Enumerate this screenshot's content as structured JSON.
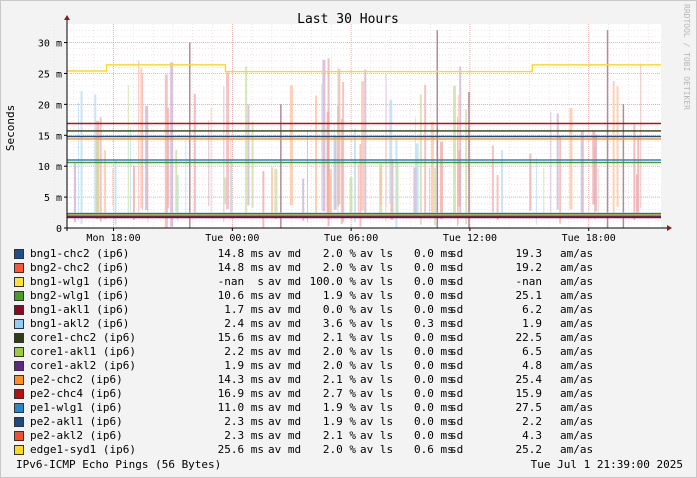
{
  "watermark": "RRDTOOL / TOBI OETIKER",
  "footer": {
    "left": "IPv6-ICMP Echo Pings (56 Bytes)",
    "right": "Tue Jul  1 21:39:00 2025"
  },
  "legend_units": {
    "avg": "av md",
    "loss": "av ls",
    "sd": "sd",
    "last": "am/as"
  },
  "legend": [
    {
      "name": "bng1-chc2 (ip6)",
      "avg": "14.8 ms",
      "loss": "2.0 %",
      "sd": "0.0 ms",
      "last": "19.3",
      "color": "#1f4e8c"
    },
    {
      "name": "bng2-chc2 (ip6)",
      "avg": "14.8 ms",
      "loss": "2.0 %",
      "sd": "0.0 ms",
      "last": "19.2",
      "color": "#ff5533"
    },
    {
      "name": "bng1-wlg1 (ip6)",
      "avg": "-nan  s",
      "loss": "100.0 %",
      "sd": "0.0 ms",
      "last": "-nan",
      "color": "#ffe03c"
    },
    {
      "name": "bng2-wlg1 (ip6)",
      "avg": "10.6 ms",
      "loss": "1.9 %",
      "sd": "0.0 ms",
      "last": "25.1",
      "color": "#4c9a2a"
    },
    {
      "name": "bng1-akl1 (ip6)",
      "avg": "1.7 ms",
      "loss": "0.0 %",
      "sd": "0.0 ms",
      "last": "6.2",
      "color": "#8c0b1e"
    },
    {
      "name": "bng1-akl2 (ip6)",
      "avg": "2.4 ms",
      "loss": "3.6 %",
      "sd": "0.3 ms",
      "last": "1.9",
      "color": "#8fcdf7"
    },
    {
      "name": "core1-chc2 (ip6)",
      "avg": "15.6 ms",
      "loss": "2.1 %",
      "sd": "0.0 ms",
      "last": "22.5",
      "color": "#2e3d12"
    },
    {
      "name": "core1-akl1 (ip6)",
      "avg": "2.2 ms",
      "loss": "2.0 %",
      "sd": "0.0 ms",
      "last": "6.5",
      "color": "#9ccc3c"
    },
    {
      "name": "core1-akl2 (ip6)",
      "avg": "1.9 ms",
      "loss": "2.0 %",
      "sd": "0.0 ms",
      "last": "4.8",
      "color": "#5a2a86"
    },
    {
      "name": "pe2-chc2 (ip6)",
      "avg": "14.3 ms",
      "loss": "2.1 %",
      "sd": "0.0 ms",
      "last": "25.4",
      "color": "#ff9020"
    },
    {
      "name": "pe2-chc4 (ip6)",
      "avg": "16.9 ms",
      "loss": "2.7 %",
      "sd": "0.0 ms",
      "last": "15.9",
      "color": "#b81010"
    },
    {
      "name": "pe1-wlg1 (ip6)",
      "avg": "11.0 ms",
      "loss": "1.9 %",
      "sd": "0.0 ms",
      "last": "27.5",
      "color": "#2a86c8"
    },
    {
      "name": "pe2-akl1 (ip6)",
      "avg": "2.3 ms",
      "loss": "1.9 %",
      "sd": "0.0 ms",
      "last": "2.2",
      "color": "#1e4a80"
    },
    {
      "name": "pe2-akl2 (ip6)",
      "avg": "2.3 ms",
      "loss": "2.1 %",
      "sd": "0.0 ms",
      "last": "4.3",
      "color": "#f05030"
    },
    {
      "name": "edge1-syd1 (ip6)",
      "avg": "25.6 ms",
      "loss": "2.0 %",
      "sd": "0.6 ms",
      "last": "25.2",
      "color": "#ffd820"
    }
  ],
  "chart_data": {
    "type": "line",
    "title": "Last 30 Hours",
    "ylabel": "Seconds",
    "xlabel": "",
    "ylim": [
      0,
      0.033
    ],
    "yticks": [
      {
        "v": 0,
        "label": "0"
      },
      {
        "v": 0.005,
        "label": "5 m"
      },
      {
        "v": 0.01,
        "label": "10 m"
      },
      {
        "v": 0.015,
        "label": "15 m"
      },
      {
        "v": 0.02,
        "label": "20 m"
      },
      {
        "v": 0.025,
        "label": "25 m"
      },
      {
        "v": 0.03,
        "label": "30 m"
      }
    ],
    "xlim_hours": [
      -30,
      0
    ],
    "xticks": [
      {
        "t": -27.65,
        "label": "Mon 18:00"
      },
      {
        "t": -21.65,
        "label": "Tue 00:00"
      },
      {
        "t": -15.65,
        "label": "Tue 06:00"
      },
      {
        "t": -9.65,
        "label": "Tue 12:00"
      },
      {
        "t": -3.65,
        "label": "Tue 18:00"
      }
    ],
    "grid": true,
    "series": [
      {
        "name": "pe2-chc4 (ip6)",
        "color": "#b81010",
        "points": [
          [
            -30,
            0.0169
          ],
          [
            0,
            0.0169
          ]
        ]
      },
      {
        "name": "core1-chc2 (ip6)",
        "color": "#2e3d12",
        "points": [
          [
            -30,
            0.0157
          ],
          [
            0,
            0.0157
          ]
        ]
      },
      {
        "name": "bng1-chc2 (ip6)",
        "color": "#1f4e8c",
        "points": [
          [
            -30,
            0.0148
          ],
          [
            0,
            0.0148
          ]
        ]
      },
      {
        "name": "pe2-chc2 (ip6)",
        "color": "#ff9020",
        "points": [
          [
            -30,
            0.0144
          ],
          [
            0,
            0.0144
          ]
        ]
      },
      {
        "name": "pe1-wlg1 (ip6)",
        "color": "#2a86c8",
        "points": [
          [
            -30,
            0.011
          ],
          [
            0,
            0.011
          ]
        ]
      },
      {
        "name": "bng2-wlg1 (ip6)",
        "color": "#4c9a2a",
        "points": [
          [
            -30,
            0.0106
          ],
          [
            0,
            0.0106
          ]
        ]
      },
      {
        "name": "edge1-syd1 (ip6)",
        "color": "#ffd820",
        "points": [
          [
            -30,
            0.0254
          ],
          [
            -28,
            0.0254
          ],
          [
            -28,
            0.0264
          ],
          [
            -22,
            0.0264
          ],
          [
            -22,
            0.0253
          ],
          [
            -6.5,
            0.0253
          ],
          [
            -6.5,
            0.0264
          ],
          [
            0,
            0.0264
          ]
        ]
      },
      {
        "name": "bng1-akl2 (ip6)",
        "color": "#8fcdf7",
        "points": [
          [
            -30,
            0.0024
          ],
          [
            0,
            0.0024
          ]
        ]
      },
      {
        "name": "pe2-akl1 (ip6)",
        "color": "#1e4a80",
        "points": [
          [
            -30,
            0.0023
          ],
          [
            0,
            0.0023
          ]
        ]
      },
      {
        "name": "pe2-akl2 (ip6)",
        "color": "#f05030",
        "points": [
          [
            -30,
            0.0022
          ],
          [
            0,
            0.0022
          ]
        ]
      },
      {
        "name": "core1-akl1 (ip6)",
        "color": "#9ccc3c",
        "points": [
          [
            -30,
            0.0021
          ],
          [
            0,
            0.0021
          ]
        ]
      },
      {
        "name": "core1-akl2 (ip6)",
        "color": "#5a2a86",
        "points": [
          [
            -30,
            0.0019
          ],
          [
            0,
            0.0019
          ]
        ]
      },
      {
        "name": "bng1-akl1 (ip6)",
        "color": "#8c0b1e",
        "points": [
          [
            -30,
            0.0017
          ],
          [
            0,
            0.0017
          ]
        ]
      }
    ]
  }
}
